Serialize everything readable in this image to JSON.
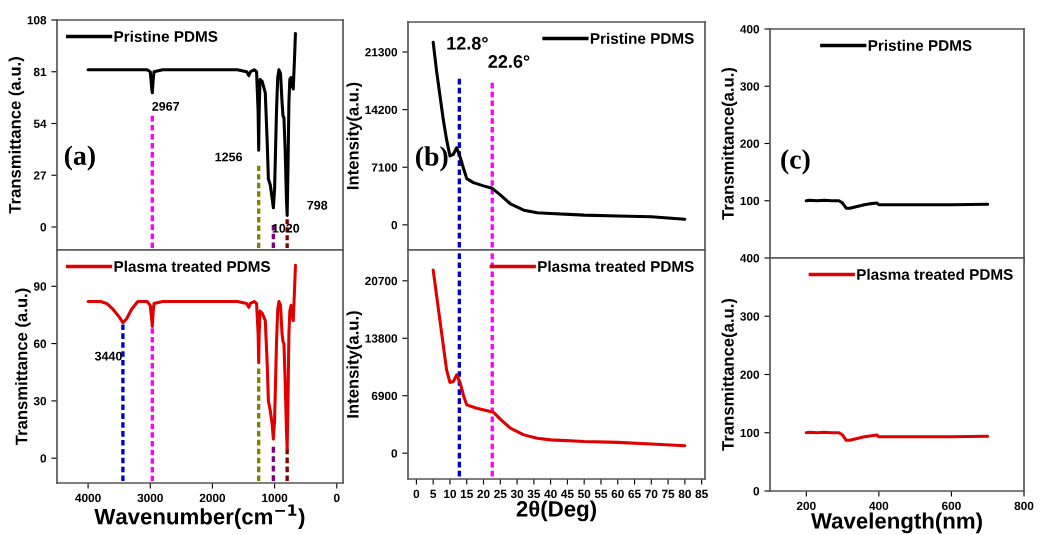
{
  "chart_data": [
    {
      "type": "line",
      "ylabel": "Transmittance (a.u.)",
      "xlim": [
        4500,
        -100
      ],
      "xticks": [
        4000,
        3000,
        2000,
        1000,
        0
      ],
      "ylim": [
        -12,
        108
      ],
      "yticks": [
        0,
        27,
        54,
        81,
        108
      ],
      "tick_labels": "y",
      "legend": "top left",
      "grid": false,
      "annotations": [
        "(a)",
        "2967",
        "1256",
        "1020",
        "798"
      ],
      "series": [
        {
          "name": "Pristine PDMS",
          "color": "#000000",
          "line_style": "solid",
          "x": [
            4000,
            3800,
            3500,
            3200,
            3050,
            3000,
            2975,
            2967,
            2955,
            2940,
            2800,
            2500,
            2000,
            1600,
            1450,
            1415,
            1390,
            1330,
            1290,
            1265,
            1256,
            1248,
            1235,
            1200,
            1150,
            1120,
            1100,
            1070,
            1040,
            1020,
            1000,
            970,
            950,
            930,
            905,
            880,
            865,
            850,
            830,
            810,
            798,
            785,
            770,
            755,
            735,
            720,
            700,
            690,
            675,
            665
          ],
          "values": [
            82,
            82,
            82,
            82,
            82,
            81,
            72,
            70,
            76,
            81,
            82,
            82,
            82,
            82,
            81,
            79,
            81,
            82,
            81,
            60,
            40,
            60,
            77,
            76,
            70,
            45,
            25,
            22,
            15,
            10,
            20,
            60,
            78,
            82,
            80,
            65,
            58,
            57,
            40,
            15,
            6,
            30,
            65,
            77,
            78,
            74,
            72,
            80,
            92,
            101
          ]
        },
        {
          "color": "#ff00ff",
          "line_style": "dashed",
          "x": [
            2967,
            2967
          ],
          "values": [
            -11,
            58
          ]
        },
        {
          "color": "#808000",
          "line_style": "dashed",
          "x": [
            1256,
            1256
          ],
          "values": [
            -11,
            32
          ]
        },
        {
          "color": "#800080",
          "line_style": "dashed",
          "x": [
            1020,
            1020
          ],
          "values": [
            -11,
            1
          ]
        },
        {
          "color": "#800000",
          "line_style": "dashed",
          "x": [
            798,
            798
          ],
          "values": [
            -11,
            4
          ]
        }
      ]
    },
    {
      "type": "line",
      "ylabel": "Intensity(a.u.)",
      "xlim": [
        -2.5,
        86
      ],
      "xticks": [
        0,
        5,
        10,
        15,
        20,
        25,
        30,
        35,
        40,
        45,
        50,
        55,
        60,
        65,
        70,
        75,
        80,
        85
      ],
      "ylim": [
        -3100,
        25000
      ],
      "yticks": [
        0,
        7100,
        14200,
        21300
      ],
      "tick_labels": "y",
      "legend": "top right",
      "grid": false,
      "annotations": [
        "(b)",
        "12.8°",
        "22.6°"
      ],
      "series": [
        {
          "name": "Pristine PDMS",
          "color": "#000000",
          "line_style": "solid",
          "x": [
            5,
            6,
            7,
            8,
            9,
            10,
            11,
            12,
            13,
            14,
            15,
            17,
            20,
            22.6,
            25,
            28,
            32,
            36,
            40,
            50,
            60,
            70,
            80
          ],
          "values": [
            22500,
            19000,
            16000,
            13000,
            10500,
            8500,
            8700,
            9500,
            8400,
            7000,
            5700,
            5200,
            4800,
            4500,
            3700,
            2600,
            1800,
            1500,
            1400,
            1200,
            1100,
            1000,
            700
          ]
        },
        {
          "color": "#0000cc",
          "line_style": "dashed",
          "x": [
            12.8,
            12.8
          ],
          "values": [
            -2800,
            18000
          ]
        },
        {
          "color": "#ff00ff",
          "line_style": "dashed",
          "x": [
            22.6,
            22.6
          ],
          "values": [
            -2800,
            17500
          ]
        }
      ]
    },
    {
      "type": "line",
      "ylabel": "Transmittance(a.u.)",
      "xlim": [
        100,
        800
      ],
      "xticks": [
        200,
        400,
        600,
        800
      ],
      "ylim": [
        0,
        400
      ],
      "yticks": [
        100,
        200,
        300,
        400
      ],
      "tick_labels": "y",
      "legend": "top",
      "grid": false,
      "annotations": [
        "(c)"
      ],
      "series": [
        {
          "name": "Pristine PDMS",
          "color": "#000000",
          "line_style": "solid",
          "x": [
            200,
            210,
            230,
            250,
            270,
            290,
            300,
            310,
            320,
            340,
            360,
            380,
            395,
            400,
            450,
            500,
            600,
            700
          ],
          "values": [
            100,
            101,
            100,
            101,
            100,
            100,
            96,
            87,
            87,
            90,
            93,
            95,
            96,
            93,
            93,
            93,
            93,
            94
          ]
        }
      ]
    },
    {
      "type": "line",
      "ylabel": "Transmittance (a.u.)",
      "xlabel": "Wavenumber(cm$^{−1}$)",
      "xlim": [
        4500,
        -100
      ],
      "xticks": [
        4000,
        3000,
        2000,
        1000,
        0
      ],
      "ylim": [
        -13,
        109
      ],
      "yticks": [
        0,
        30,
        60,
        90
      ],
      "legend": "top left",
      "grid": false,
      "annotations": [
        "3440"
      ],
      "series": [
        {
          "name": "Plasma treated PDMS",
          "color": "#e00000",
          "line_style": "solid",
          "x": [
            4000,
            3800,
            3700,
            3600,
            3500,
            3440,
            3380,
            3300,
            3200,
            3050,
            3000,
            2975,
            2967,
            2955,
            2940,
            2800,
            2500,
            2000,
            1600,
            1450,
            1415,
            1390,
            1330,
            1290,
            1265,
            1256,
            1248,
            1235,
            1200,
            1150,
            1120,
            1100,
            1070,
            1040,
            1020,
            1000,
            970,
            950,
            930,
            905,
            880,
            865,
            850,
            830,
            810,
            798,
            785,
            770,
            755,
            735,
            720,
            700,
            690,
            675,
            665
          ],
          "values": [
            82,
            82,
            81,
            78,
            74,
            71,
            73,
            78,
            82,
            82,
            80,
            72,
            69,
            76,
            81,
            82,
            82,
            82,
            82,
            81,
            79,
            81,
            82,
            81,
            65,
            50,
            65,
            77,
            76,
            72,
            50,
            30,
            25,
            18,
            10,
            20,
            60,
            78,
            82,
            80,
            65,
            61,
            60,
            40,
            15,
            5,
            30,
            65,
            77,
            80,
            74,
            72,
            80,
            92,
            101
          ]
        },
        {
          "color": "#0000cc",
          "line_style": "dashed",
          "x": [
            3440,
            3440
          ],
          "values": [
            -12,
            70
          ]
        },
        {
          "color": "#ff00ff",
          "line_style": "dashed",
          "x": [
            2967,
            2967
          ],
          "values": [
            -12,
            68
          ]
        },
        {
          "color": "#808000",
          "line_style": "dashed",
          "x": [
            1256,
            1256
          ],
          "values": [
            -12,
            47
          ]
        },
        {
          "color": "#800080",
          "line_style": "dashed",
          "x": [
            1020,
            1020
          ],
          "values": [
            -12,
            6
          ]
        },
        {
          "color": "#800000",
          "line_style": "dashed",
          "x": [
            798,
            798
          ],
          "values": [
            -12,
            5
          ]
        }
      ]
    },
    {
      "type": "line",
      "ylabel": "Intensity(a.u.)",
      "xlabel": "2θ(Deg)",
      "xlim": [
        -2.5,
        86
      ],
      "xticks": [
        0,
        5,
        10,
        15,
        20,
        25,
        30,
        35,
        40,
        45,
        50,
        55,
        60,
        65,
        70,
        75,
        80,
        85
      ],
      "ylim": [
        -3100,
        24400
      ],
      "yticks": [
        0,
        6900,
        13800,
        20700
      ],
      "legend": "top right",
      "grid": false,
      "series": [
        {
          "name": "Plasma treated PDMS",
          "color": "#e00000",
          "line_style": "solid",
          "x": [
            5,
            6,
            7,
            8,
            9,
            10,
            11,
            12,
            13,
            14,
            15,
            18,
            22,
            23,
            25,
            28,
            32,
            36,
            40,
            50,
            60,
            70,
            80
          ],
          "values": [
            22000,
            19000,
            16000,
            13000,
            10000,
            8500,
            8600,
            9400,
            8500,
            7000,
            5800,
            5400,
            5000,
            4900,
            4100,
            3000,
            2200,
            1800,
            1600,
            1400,
            1300,
            1100,
            900
          ]
        },
        {
          "color": "#0000cc",
          "line_style": "dashed",
          "x": [
            12.8,
            12.8
          ],
          "values": [
            -2800,
            24000
          ]
        },
        {
          "color": "#ff00ff",
          "line_style": "dashed",
          "x": [
            22.6,
            22.6
          ],
          "values": [
            -2800,
            24000
          ]
        }
      ]
    },
    {
      "type": "line",
      "ylabel": "Transmittance(a.u.)",
      "xlabel": "Wavelength(nm)",
      "xlim": [
        100,
        800
      ],
      "xticks": [
        200,
        400,
        600,
        800
      ],
      "ylim": [
        0,
        400
      ],
      "yticks": [
        0,
        100,
        200,
        300,
        400
      ],
      "legend": "top right",
      "grid": false,
      "series": [
        {
          "name": "Plasma treated PDMS",
          "color": "#e00000",
          "line_style": "solid",
          "x": [
            200,
            210,
            230,
            250,
            270,
            290,
            300,
            310,
            320,
            340,
            360,
            380,
            395,
            400,
            450,
            500,
            600,
            700
          ],
          "values": [
            100,
            101,
            100,
            101,
            100,
            100,
            96,
            87,
            87,
            90,
            93,
            95,
            96,
            93,
            93,
            93,
            93,
            94
          ]
        }
      ]
    }
  ]
}
